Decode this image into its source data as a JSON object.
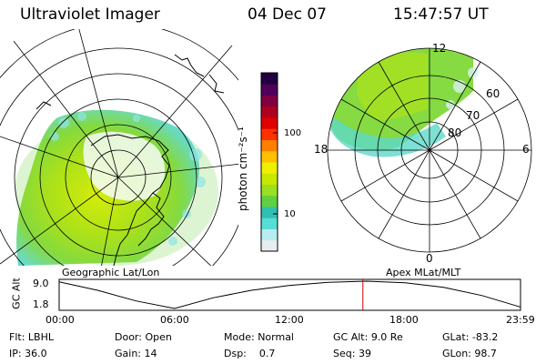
{
  "header": {
    "instrument": "Ultraviolet Imager",
    "date": "04 Dec 07",
    "time": "15:47:57 UT"
  },
  "geo_panel": {
    "label": "Geographic Lat/Lon"
  },
  "apex_panel": {
    "label": "Apex MLat/MLT",
    "mlt_labels": [
      "12",
      "18",
      "6",
      "0"
    ],
    "mlat_labels": [
      "60",
      "70",
      "80"
    ]
  },
  "colorbar": {
    "unit_label": "photon cm⁻²s⁻¹",
    "tick_labels": [
      "100",
      "10"
    ],
    "scale": "log",
    "colors": [
      "#e8eef0",
      "#b8ecee",
      "#58dcd8",
      "#30c0b0",
      "#60d040",
      "#98e020",
      "#c8e800",
      "#eef000",
      "#ffc000",
      "#ff8000",
      "#ff3000",
      "#e00000",
      "#b00020",
      "#800040",
      "#50005a",
      "#200040"
    ]
  },
  "altitude_plot": {
    "ylabel": "GC Alt",
    "y_ticks": [
      "9.0",
      "1.8"
    ],
    "x_ticks": [
      "00:00",
      "06:00",
      "12:00",
      "18:00",
      "23:59"
    ],
    "ylim": [
      1.8,
      9.0
    ],
    "curve": [
      {
        "t": 0,
        "alt": 8.8
      },
      {
        "t": 2,
        "alt": 6.6
      },
      {
        "t": 4,
        "alt": 3.8
      },
      {
        "t": 6,
        "alt": 1.8
      },
      {
        "t": 8,
        "alt": 4.6
      },
      {
        "t": 10,
        "alt": 6.6
      },
      {
        "t": 12,
        "alt": 7.9
      },
      {
        "t": 14,
        "alt": 8.7
      },
      {
        "t": 16,
        "alt": 9.0
      },
      {
        "t": 18,
        "alt": 8.6
      },
      {
        "t": 20,
        "alt": 7.4
      },
      {
        "t": 22,
        "alt": 5.2
      },
      {
        "t": 23.98,
        "alt": 2.2
      }
    ],
    "current_time_hours": 15.8,
    "current_marker_color": "#cc0000"
  },
  "info": {
    "flt_label": "Flt:",
    "flt_value": "LBHL",
    "ip_label": "IP:",
    "ip_value": "36.0",
    "door_label": "Door:",
    "door_value": "Open",
    "gain_label": "Gain:",
    "gain_value": "14",
    "mode_label": "Mode:",
    "mode_value": "Normal",
    "dsp_label": "Dsp:",
    "dsp_value": "0.7",
    "gcalt_label": "GC Alt:",
    "gcalt_value": "9.0 Re",
    "seq_label": "Seq:",
    "seq_value": "39",
    "glat_label": "GLat:",
    "glat_value": "-83.2",
    "glon_label": "GLon:",
    "glon_value": "98.7"
  }
}
